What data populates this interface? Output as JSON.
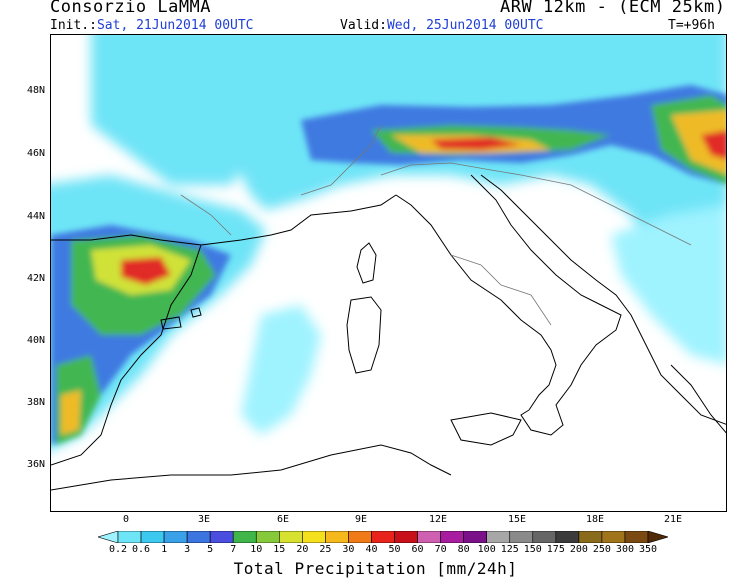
{
  "header": {
    "org": "Consorzio LaMMA",
    "model": "ARW 12km - (ECM 25km)",
    "init_label": "Init.:",
    "init_value": "Sat, 21Jun2014 00UTC",
    "valid_label": "Valid:",
    "valid_value": "Wed, 25Jun2014 00UTC",
    "lead": "T=+96h"
  },
  "map": {
    "lat_labels": [
      "48N",
      "46N",
      "44N",
      "42N",
      "40N",
      "38N",
      "36N"
    ],
    "lon_labels": [
      "0",
      "3E",
      "6E",
      "9E",
      "12E",
      "15E",
      "18E",
      "21E"
    ]
  },
  "colorbar": {
    "title": "Total Precipitation [mm/24h]",
    "levels": [
      "0.2",
      "0.6",
      "1",
      "3",
      "5",
      "7",
      "10",
      "15",
      "20",
      "25",
      "30",
      "40",
      "50",
      "60",
      "70",
      "80",
      "100",
      "125",
      "150",
      "175",
      "200",
      "250",
      "300",
      "350"
    ],
    "colors": [
      "#9ff3ff",
      "#6ee4f7",
      "#3cc8ef",
      "#3aa0e8",
      "#3c74e0",
      "#4a4fe0",
      "#3fb54a",
      "#86c93a",
      "#d6e22f",
      "#f5e01d",
      "#f5b91d",
      "#f07a17",
      "#e8231b",
      "#c7101a",
      "#cf5fb0",
      "#a81ca0",
      "#7a1189",
      "#a7a7a7",
      "#8a8a8a",
      "#666666",
      "#3b3b3b",
      "#8a6a1b",
      "#a0741b",
      "#7a4a12",
      "#4f2a08"
    ]
  }
}
